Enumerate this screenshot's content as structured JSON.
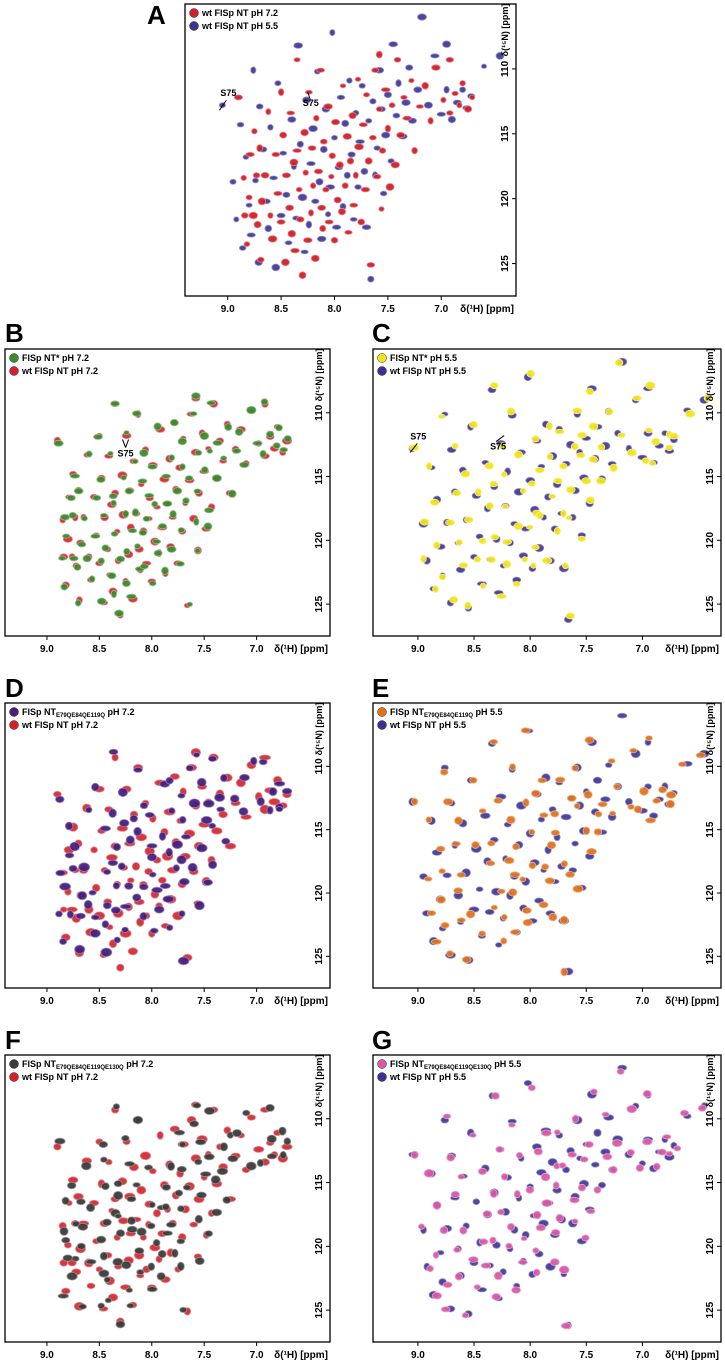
{
  "chart_data": [
    {
      "type": "scatter",
      "panel": "A",
      "xlabel": "δ(¹H) [ppm]",
      "ylabel": "δ(¹⁵N) [ppm]",
      "xlim": [
        9.4,
        6.3
      ],
      "ylim": [
        105,
        127.5
      ],
      "xticks": [
        "9.0",
        "8.5",
        "8.0",
        "7.5",
        "7.0"
      ],
      "yticks": [
        "110",
        "115",
        "120",
        "125"
      ],
      "annotations": [
        "S75",
        "S75"
      ],
      "series": [
        {
          "name": "wt FlSp NT pH 7.2",
          "color": "#d0202a"
        },
        {
          "name": "wt FlSp NT pH 5.5",
          "color": "#3a3194"
        }
      ]
    },
    {
      "type": "scatter",
      "panel": "B",
      "xlabel": "δ(¹H) [ppm]",
      "ylabel": "δ(¹⁵N) [ppm]",
      "xlim": [
        9.4,
        6.3
      ],
      "ylim": [
        105,
        127.5
      ],
      "xticks": [
        "9.0",
        "8.5",
        "8.0",
        "7.5",
        "7.0"
      ],
      "yticks": [
        "110",
        "115",
        "120",
        "125"
      ],
      "annotations": [
        "S75"
      ],
      "series": [
        {
          "name": "FlSp NT* pH 7.2",
          "color": "#3f8a2d"
        },
        {
          "name": "wt FlSp NT pH 7.2",
          "color": "#d0202a"
        }
      ]
    },
    {
      "type": "scatter",
      "panel": "C",
      "xlabel": "δ(¹H) [ppm]",
      "ylabel": "δ(¹⁵N) [ppm]",
      "xlim": [
        9.4,
        6.3
      ],
      "ylim": [
        105,
        127.5
      ],
      "xticks": [
        "9.0",
        "8.5",
        "8.0",
        "7.5",
        "7.0"
      ],
      "yticks": [
        "110",
        "115",
        "120",
        "125"
      ],
      "annotations": [
        "S75",
        "S75"
      ],
      "series": [
        {
          "name": "FlSp NT* pH 5.5",
          "color": "#f2e41a"
        },
        {
          "name": "wt FlSp NT pH 5.5",
          "color": "#3a3194"
        }
      ]
    },
    {
      "type": "scatter",
      "panel": "D",
      "xlabel": "δ(¹H) [ppm]",
      "ylabel": "δ(¹⁵N) [ppm]",
      "xlim": [
        9.4,
        6.3
      ],
      "ylim": [
        105,
        127.5
      ],
      "xticks": [
        "9.0",
        "8.5",
        "8.0",
        "7.5",
        "7.0"
      ],
      "yticks": [
        "110",
        "115",
        "120",
        "125"
      ],
      "series": [
        {
          "name": "FlSp NT",
          "name_sub": "E79QE84QE119Q",
          "name_tail": " pH 7.2",
          "color": "#46207e"
        },
        {
          "name": "wt FlSp NT pH 7.2",
          "color": "#d0202a"
        }
      ]
    },
    {
      "type": "scatter",
      "panel": "E",
      "xlabel": "δ(¹H) [ppm]",
      "ylabel": "δ(¹⁵N) [ppm]",
      "xlim": [
        9.4,
        6.3
      ],
      "ylim": [
        105,
        127.5
      ],
      "xticks": [
        "9.0",
        "8.5",
        "8.0",
        "7.5",
        "7.0"
      ],
      "yticks": [
        "110",
        "115",
        "120",
        "125"
      ],
      "series": [
        {
          "name": "FlSp NT",
          "name_sub": "E79QE84QE119Q",
          "name_tail": " pH 5.5",
          "color": "#e07322"
        },
        {
          "name": "wt FlSp NT pH 5.5",
          "color": "#3a3194"
        }
      ]
    },
    {
      "type": "scatter",
      "panel": "F",
      "xlabel": "δ(¹H) [ppm]",
      "ylabel": "δ(¹⁵N) [ppm]",
      "xlim": [
        9.4,
        6.3
      ],
      "ylim": [
        105,
        127.5
      ],
      "xticks": [
        "9.0",
        "8.5",
        "8.0",
        "7.5",
        "7.0"
      ],
      "yticks": [
        "110",
        "115",
        "120",
        "125"
      ],
      "series": [
        {
          "name": "FlSp NT",
          "name_sub": "E79QE84QE119QE130Q",
          "name_tail": " pH 7.2",
          "color": "#3b3b3b"
        },
        {
          "name": "wt FlSp NT pH 7.2",
          "color": "#d0202a"
        }
      ]
    },
    {
      "type": "scatter",
      "panel": "G",
      "xlabel": "δ(¹H) [ppm]",
      "ylabel": "δ(¹⁵N) [ppm]",
      "xlim": [
        9.4,
        6.3
      ],
      "ylim": [
        105,
        127.5
      ],
      "xticks": [
        "9.0",
        "8.5",
        "8.0",
        "7.5",
        "7.0"
      ],
      "yticks": [
        "110",
        "115",
        "120",
        "125"
      ],
      "series": [
        {
          "name": "FlSp NT",
          "name_sub": "E79QE84QE119QE130Q",
          "name_tail": " pH 5.5",
          "color": "#d75aa6"
        },
        {
          "name": "wt FlSp NT pH 5.5",
          "color": "#3a3194"
        }
      ]
    }
  ],
  "peaks": {
    "ref72": [
      [
        8.9,
        112.2
      ],
      [
        8.85,
        118.4
      ],
      [
        8.84,
        121.3
      ],
      [
        8.82,
        123.5
      ],
      [
        8.8,
        119.9
      ],
      [
        8.79,
        116.6
      ],
      [
        8.76,
        121.3
      ],
      [
        8.75,
        114.8
      ],
      [
        8.73,
        118.2
      ],
      [
        8.72,
        122.0
      ],
      [
        8.7,
        116.1
      ],
      [
        8.69,
        124.7
      ],
      [
        8.68,
        120.2
      ],
      [
        8.65,
        118.2
      ],
      [
        8.62,
        113.3
      ],
      [
        8.6,
        121.3
      ],
      [
        8.58,
        123.1
      ],
      [
        8.55,
        116.6
      ],
      [
        8.53,
        119.6
      ],
      [
        8.5,
        111.8
      ],
      [
        8.5,
        121.8
      ],
      [
        8.48,
        115.1
      ],
      [
        8.46,
        124.9
      ],
      [
        8.45,
        118.2
      ],
      [
        8.42,
        120.7
      ],
      [
        8.41,
        113.4
      ],
      [
        8.4,
        122.7
      ],
      [
        8.38,
        117.2
      ],
      [
        8.37,
        124.0
      ],
      [
        8.35,
        109.3
      ],
      [
        8.35,
        116.3
      ],
      [
        8.33,
        119.3
      ],
      [
        8.32,
        121.6
      ],
      [
        8.3,
        125.9
      ],
      [
        8.28,
        114.9
      ],
      [
        8.27,
        118.0
      ],
      [
        8.25,
        123.2
      ],
      [
        8.24,
        111.8
      ],
      [
        8.22,
        121.1
      ],
      [
        8.21,
        116.1
      ],
      [
        8.2,
        119.0
      ],
      [
        8.18,
        124.6
      ],
      [
        8.17,
        113.8
      ],
      [
        8.15,
        117.9
      ],
      [
        8.13,
        110.1
      ],
      [
        8.12,
        120.7
      ],
      [
        8.11,
        122.3
      ],
      [
        8.1,
        115.6
      ],
      [
        8.08,
        119.3
      ],
      [
        8.06,
        112.9
      ],
      [
        8.05,
        121.8
      ],
      [
        8.03,
        118.3
      ],
      [
        8.02,
        116.7
      ],
      [
        8.0,
        123.2
      ],
      [
        7.99,
        114.1
      ],
      [
        7.97,
        120.1
      ],
      [
        7.95,
        117.4
      ],
      [
        7.93,
        121.0
      ],
      [
        7.92,
        111.3
      ],
      [
        7.9,
        119.0
      ],
      [
        7.88,
        115.2
      ],
      [
        7.87,
        122.6
      ],
      [
        7.85,
        117.1
      ],
      [
        7.83,
        113.6
      ],
      [
        7.82,
        120.5
      ],
      [
        7.8,
        118.2
      ],
      [
        7.78,
        110.8
      ],
      [
        7.77,
        116.0
      ],
      [
        7.75,
        121.8
      ],
      [
        7.73,
        114.3
      ],
      [
        7.71,
        119.3
      ],
      [
        7.7,
        112.0
      ],
      [
        7.68,
        117.1
      ],
      [
        7.66,
        125.1
      ],
      [
        7.64,
        115.3
      ],
      [
        7.62,
        110.1
      ],
      [
        7.6,
        118.3
      ],
      [
        7.58,
        113.1
      ],
      [
        7.56,
        120.8
      ],
      [
        7.55,
        116.3
      ],
      [
        7.52,
        111.6
      ],
      [
        7.5,
        114.6
      ],
      [
        7.48,
        119.1
      ],
      [
        7.46,
        112.8
      ],
      [
        7.43,
        117.4
      ],
      [
        7.41,
        109.3
      ],
      [
        7.38,
        115.1
      ],
      [
        7.35,
        112.2
      ],
      [
        7.32,
        113.8
      ],
      [
        7.28,
        110.9
      ],
      [
        7.25,
        116.3
      ],
      [
        7.2,
        112.9
      ],
      [
        7.15,
        111.3
      ],
      [
        7.1,
        114.0
      ],
      [
        7.05,
        109.9
      ],
      [
        6.98,
        112.4
      ],
      [
        6.92,
        113.4
      ],
      [
        6.87,
        111.9
      ],
      [
        6.83,
        112.8
      ],
      [
        6.8,
        111.1
      ],
      [
        6.75,
        113.1
      ],
      [
        6.71,
        112.2
      ],
      [
        6.92,
        109.3
      ],
      [
        7.58,
        108.9
      ]
    ],
    "ref55": [
      [
        9.05,
        112.8
      ],
      [
        8.95,
        118.7
      ],
      [
        8.92,
        121.6
      ],
      [
        8.88,
        114.3
      ],
      [
        8.86,
        123.8
      ],
      [
        8.83,
        116.8
      ],
      [
        8.8,
        120.5
      ],
      [
        8.78,
        122.8
      ],
      [
        8.76,
        110.1
      ],
      [
        8.74,
        118.6
      ],
      [
        8.71,
        124.9
      ],
      [
        8.7,
        112.9
      ],
      [
        8.67,
        116.2
      ],
      [
        8.64,
        120.2
      ],
      [
        8.62,
        122.3
      ],
      [
        8.6,
        114.5
      ],
      [
        8.57,
        118.4
      ],
      [
        8.55,
        125.3
      ],
      [
        8.53,
        111.1
      ],
      [
        8.5,
        121.3
      ],
      [
        8.48,
        116.5
      ],
      [
        8.45,
        119.7
      ],
      [
        8.43,
        123.4
      ],
      [
        8.4,
        113.9
      ],
      [
        8.38,
        117.5
      ],
      [
        8.36,
        121.5
      ],
      [
        8.34,
        108.2
      ],
      [
        8.32,
        115.8
      ],
      [
        8.3,
        119.9
      ],
      [
        8.28,
        124.1
      ],
      [
        8.26,
        112.4
      ],
      [
        8.24,
        122.0
      ],
      [
        8.22,
        117.3
      ],
      [
        8.2,
        114.6
      ],
      [
        8.18,
        120.2
      ],
      [
        8.16,
        110.2
      ],
      [
        8.14,
        118.7
      ],
      [
        8.12,
        123.1
      ],
      [
        8.1,
        116.2
      ],
      [
        8.08,
        113.1
      ],
      [
        8.06,
        121.2
      ],
      [
        8.04,
        119.1
      ],
      [
        8.02,
        107.2
      ],
      [
        8.0,
        115.3
      ],
      [
        7.98,
        122.2
      ],
      [
        7.96,
        117.6
      ],
      [
        7.94,
        112.2
      ],
      [
        7.92,
        120.6
      ],
      [
        7.9,
        114.2
      ],
      [
        7.88,
        118.2
      ],
      [
        7.86,
        110.9
      ],
      [
        7.84,
        116.6
      ],
      [
        7.82,
        121.6
      ],
      [
        7.8,
        113.4
      ],
      [
        7.78,
        119.1
      ],
      [
        7.76,
        115.6
      ],
      [
        7.74,
        111.3
      ],
      [
        7.72,
        117.9
      ],
      [
        7.7,
        122.2
      ],
      [
        7.68,
        114.0
      ],
      [
        7.66,
        126.2
      ],
      [
        7.64,
        112.5
      ],
      [
        7.62,
        118.2
      ],
      [
        7.6,
        116.1
      ],
      [
        7.58,
        110.1
      ],
      [
        7.56,
        113.1
      ],
      [
        7.54,
        119.6
      ],
      [
        7.52,
        115.1
      ],
      [
        7.5,
        112.0
      ],
      [
        7.47,
        117.1
      ],
      [
        7.45,
        108.1
      ],
      [
        7.42,
        113.6
      ],
      [
        7.4,
        111.1
      ],
      [
        7.36,
        115.2
      ],
      [
        7.33,
        112.6
      ],
      [
        7.3,
        109.9
      ],
      [
        7.27,
        114.0
      ],
      [
        7.22,
        111.6
      ],
      [
        7.18,
        106.0
      ],
      [
        7.12,
        112.8
      ],
      [
        7.06,
        109.0
      ],
      [
        7.0,
        113.5
      ],
      [
        6.95,
        111.6
      ],
      [
        6.9,
        113.9
      ],
      [
        6.85,
        112.6
      ],
      [
        6.8,
        111.6
      ],
      [
        6.76,
        113.0
      ],
      [
        6.72,
        112.1
      ],
      [
        6.95,
        108.1
      ],
      [
        6.6,
        109.8
      ],
      [
        6.45,
        109.0
      ]
    ],
    "s75_72": [
      8.25,
      112.1
    ],
    "s75_55": [
      9.05,
      112.8
    ]
  }
}
